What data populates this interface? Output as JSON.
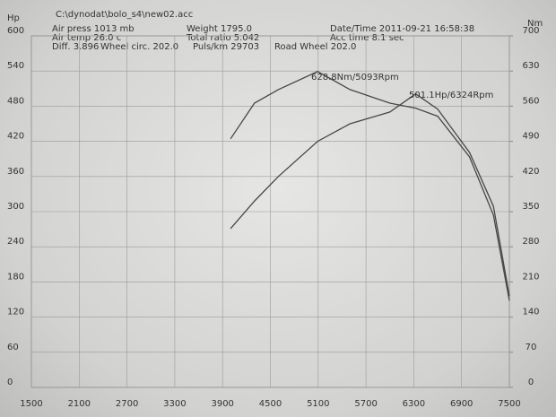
{
  "chart_data": {
    "type": "line",
    "file": "C:\\dynodat\\bolo_s4\\new02.acc",
    "info": [
      "Air press  1013 mb",
      "Air temp  26.0 c",
      "Diff.   3.896",
      "Wheel circ. 202.0",
      "Puls/km  29703",
      "Road Wheel 202.0",
      "Weight   1795.0",
      "Total ratio 5.042",
      "Date/Time 2011-09-21 16:58:38",
      "Acc time  8.1 sec"
    ],
    "ylabel": "Hp",
    "y2label": "Nm",
    "annotations": [
      "628.8Nm/5093Rpm",
      "501.1Hp/6324Rpm"
    ],
    "x": [
      4000,
      4300,
      4600,
      5093,
      5500,
      6000,
      6324,
      6600,
      7000,
      7300,
      7500
    ],
    "series": [
      {
        "name": "Hp",
        "color": "#474747",
        "values": [
          271,
          318,
          360,
          420,
          450,
          470,
          501,
          475,
          401,
          309,
          156
        ]
      },
      {
        "name": "Nm",
        "color": "#474747",
        "axis": "y2",
        "values": [
          495,
          566,
          593,
          629,
          593,
          566,
          556,
          540,
          459,
          343,
          173
        ]
      }
    ],
    "xlim": [
      1500,
      7500
    ],
    "xticks": [
      1500,
      2100,
      2700,
      3300,
      3900,
      4500,
      5100,
      5700,
      6300,
      6900,
      7500
    ],
    "ylim": [
      0,
      600
    ],
    "yticks": [
      0,
      60,
      120,
      180,
      240,
      300,
      360,
      420,
      480,
      540,
      600
    ],
    "y2lim": [
      0,
      700
    ],
    "y2ticks": [
      0,
      70,
      140,
      210,
      280,
      350,
      420,
      490,
      560,
      630,
      700
    ],
    "grid": true
  }
}
